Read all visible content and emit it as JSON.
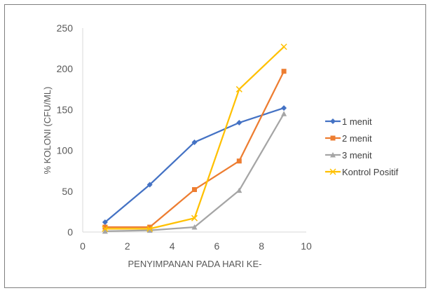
{
  "chart_data": {
    "type": "line",
    "title": "",
    "xlabel": "PENYIMPANAN PADA HARI KE-",
    "ylabel": "% KOLONI (CFU/ML)",
    "xlim": [
      0,
      10
    ],
    "ylim": [
      0,
      250
    ],
    "xticks": [
      0,
      2,
      4,
      6,
      8,
      10
    ],
    "yticks": [
      0,
      50,
      100,
      150,
      200,
      250
    ],
    "grid": false,
    "legend_position": "right",
    "x": [
      1,
      3,
      5,
      7,
      9
    ],
    "series": [
      {
        "name": "1 menit",
        "color": "#4472c4",
        "marker": "diamond",
        "values": [
          12,
          58,
          110,
          134,
          152
        ]
      },
      {
        "name": "2 menit",
        "color": "#ed7d31",
        "marker": "square",
        "values": [
          6,
          6,
          52,
          87,
          197
        ]
      },
      {
        "name": "3 menit",
        "color": "#a5a5a5",
        "marker": "triangle",
        "values": [
          1,
          2,
          6,
          51,
          145
        ]
      },
      {
        "name": "Kontrol Positif",
        "color": "#ffc000",
        "marker": "x",
        "values": [
          4,
          4,
          17,
          175,
          227
        ]
      }
    ]
  }
}
